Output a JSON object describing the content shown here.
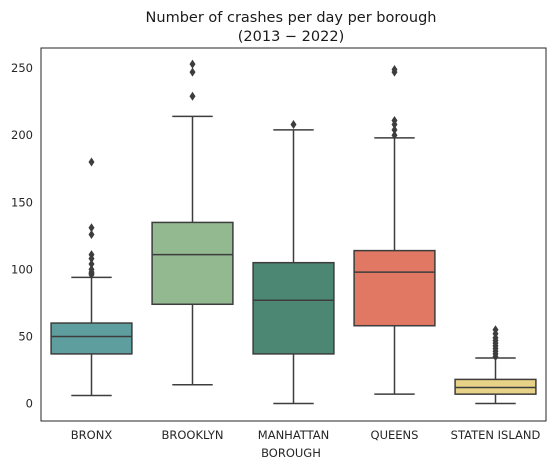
{
  "chart_data": {
    "type": "boxplot",
    "title_line1": "Number of crashes per day per borough",
    "title_line2": "(2013 − 2022)",
    "xlabel": "BOROUGH",
    "ylabel": "",
    "ylim": [
      -13,
      265
    ],
    "yticks": [
      "0",
      "50",
      "100",
      "150",
      "200",
      "250"
    ],
    "ytick_values": [
      0,
      50,
      100,
      150,
      200,
      250
    ],
    "grid": false,
    "categories": [
      "BRONX",
      "BROOKLYN",
      "MANHATTAN",
      "QUEENS",
      "STATEN ISLAND"
    ],
    "boxes": [
      {
        "category": "BRONX",
        "color": "#5f9e9e",
        "whisker_low": 6,
        "q1": 37,
        "median": 50,
        "q3": 60,
        "whisker_high": 94,
        "outliers": [
          96,
          97,
          98,
          100,
          104,
          108,
          111,
          126,
          131,
          180
        ]
      },
      {
        "category": "BROOKLYN",
        "color": "#93b991",
        "whisker_low": 14,
        "q1": 74,
        "median": 111,
        "q3": 135,
        "whisker_high": 214,
        "outliers": [
          229,
          247,
          253
        ]
      },
      {
        "category": "MANHATTAN",
        "color": "#4b8773",
        "whisker_low": 0,
        "q1": 37,
        "median": 77,
        "q3": 105,
        "whisker_high": 204,
        "outliers": [
          208
        ]
      },
      {
        "category": "QUEENS",
        "color": "#e07863",
        "whisker_low": 7,
        "q1": 58,
        "median": 98,
        "q3": 114,
        "whisker_high": 198,
        "outliers": [
          200,
          204,
          208,
          211,
          247,
          249
        ]
      },
      {
        "category": "STATEN ISLAND",
        "color": "#e8d287",
        "whisker_low": 0,
        "q1": 7,
        "median": 12,
        "q3": 18,
        "whisker_high": 34,
        "outliers": [
          35,
          37,
          39,
          41,
          43,
          45,
          47,
          49,
          52,
          55
        ]
      }
    ],
    "line_color": "#3d3d3d"
  }
}
